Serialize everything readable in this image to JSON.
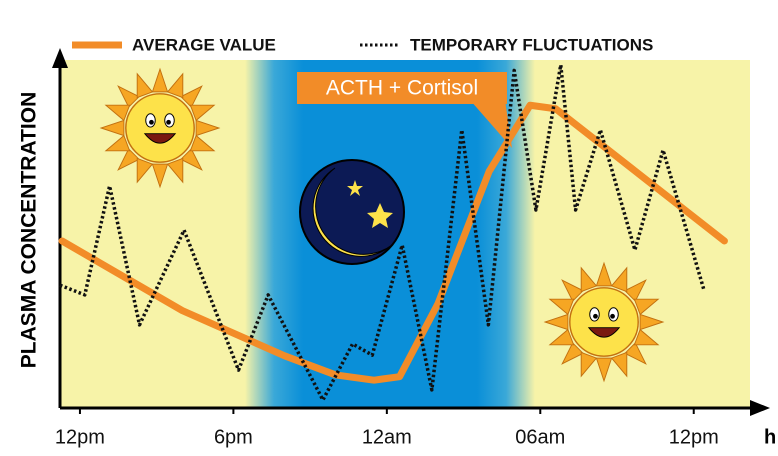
{
  "chart_data": {
    "type": "line",
    "y_label": "PLASMA CONCENTRATION",
    "x_unit": "h",
    "annotation": "ACTH + Cortisol",
    "xlim": [
      -0.78,
      26.2
    ],
    "ylim": [
      0,
      100
    ],
    "xticks": [
      {
        "value": 0,
        "label": "12pm"
      },
      {
        "value": 6,
        "label": "6pm"
      },
      {
        "value": 12,
        "label": "12am"
      },
      {
        "value": 18,
        "label": "06am"
      },
      {
        "value": 24,
        "label": "12pm"
      }
    ],
    "series": [
      {
        "name": "AVERAGE VALUE",
        "color": "#f28c28",
        "style": "solid",
        "x": [
          -0.7,
          4,
          8,
          10,
          11.5,
          12.5,
          14,
          16,
          17.6,
          18.6,
          25.2
        ],
        "values": [
          48,
          28,
          15,
          9.5,
          8,
          9,
          30,
          68,
          87,
          86,
          48
        ]
      },
      {
        "name": "TEMPORARY FLUCTUATIONS",
        "color": "#111111",
        "style": "dotted",
        "x": [
          -0.78,
          0.19,
          1.16,
          2.33,
          4.07,
          6.2,
          7.36,
          9.5,
          10.66,
          11.43,
          12.6,
          13.76,
          14.93,
          15.97,
          16.98,
          17.83,
          18.8,
          19.38,
          20.35,
          21.7,
          22.8,
          24.4
        ],
        "values": [
          35.3,
          32.5,
          63.8,
          23.9,
          51.1,
          10.9,
          32.5,
          2.3,
          18.4,
          15.2,
          46.8,
          5.2,
          79.9,
          23.9,
          97,
          56.9,
          98.6,
          56.9,
          79.9,
          45.4,
          74.1,
          33.9
        ]
      }
    ]
  }
}
